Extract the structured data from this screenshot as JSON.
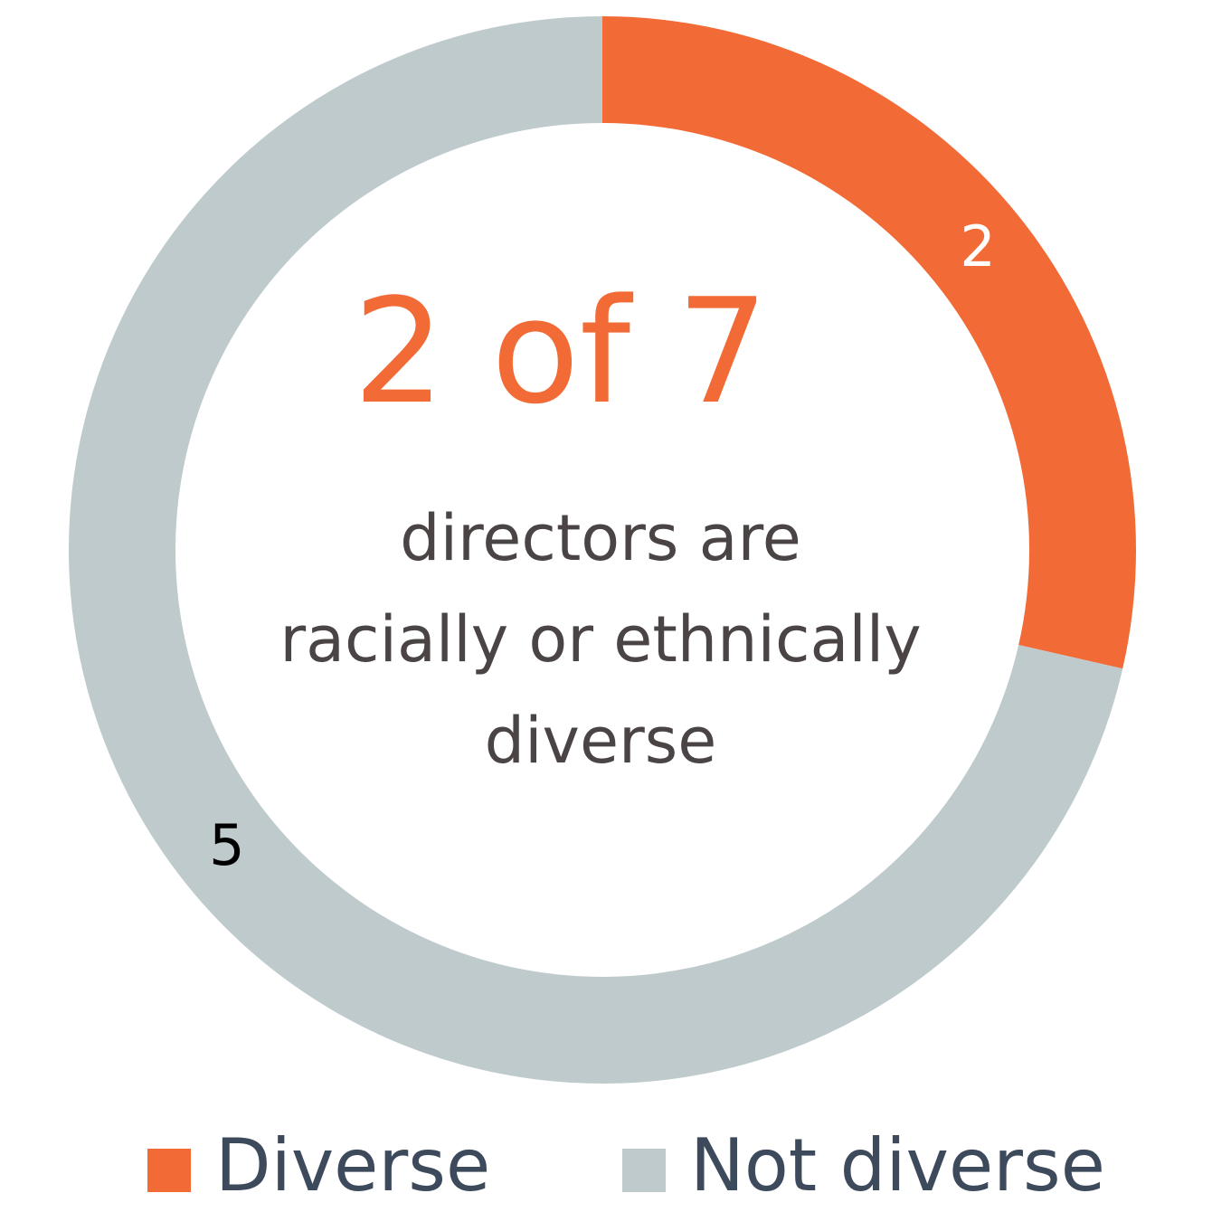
{
  "chart_data": {
    "type": "donut",
    "center_title": "2 of 7",
    "center_text": [
      "directors are",
      "racially or ethnically",
      "diverse"
    ],
    "categories": [
      "Diverse",
      "Not diverse"
    ],
    "values": [
      2,
      5
    ],
    "colors": [
      "#F26B36",
      "#BFCACD"
    ],
    "label_colors": [
      "#FFFFFF",
      "#000000"
    ],
    "legend": "bottom"
  }
}
